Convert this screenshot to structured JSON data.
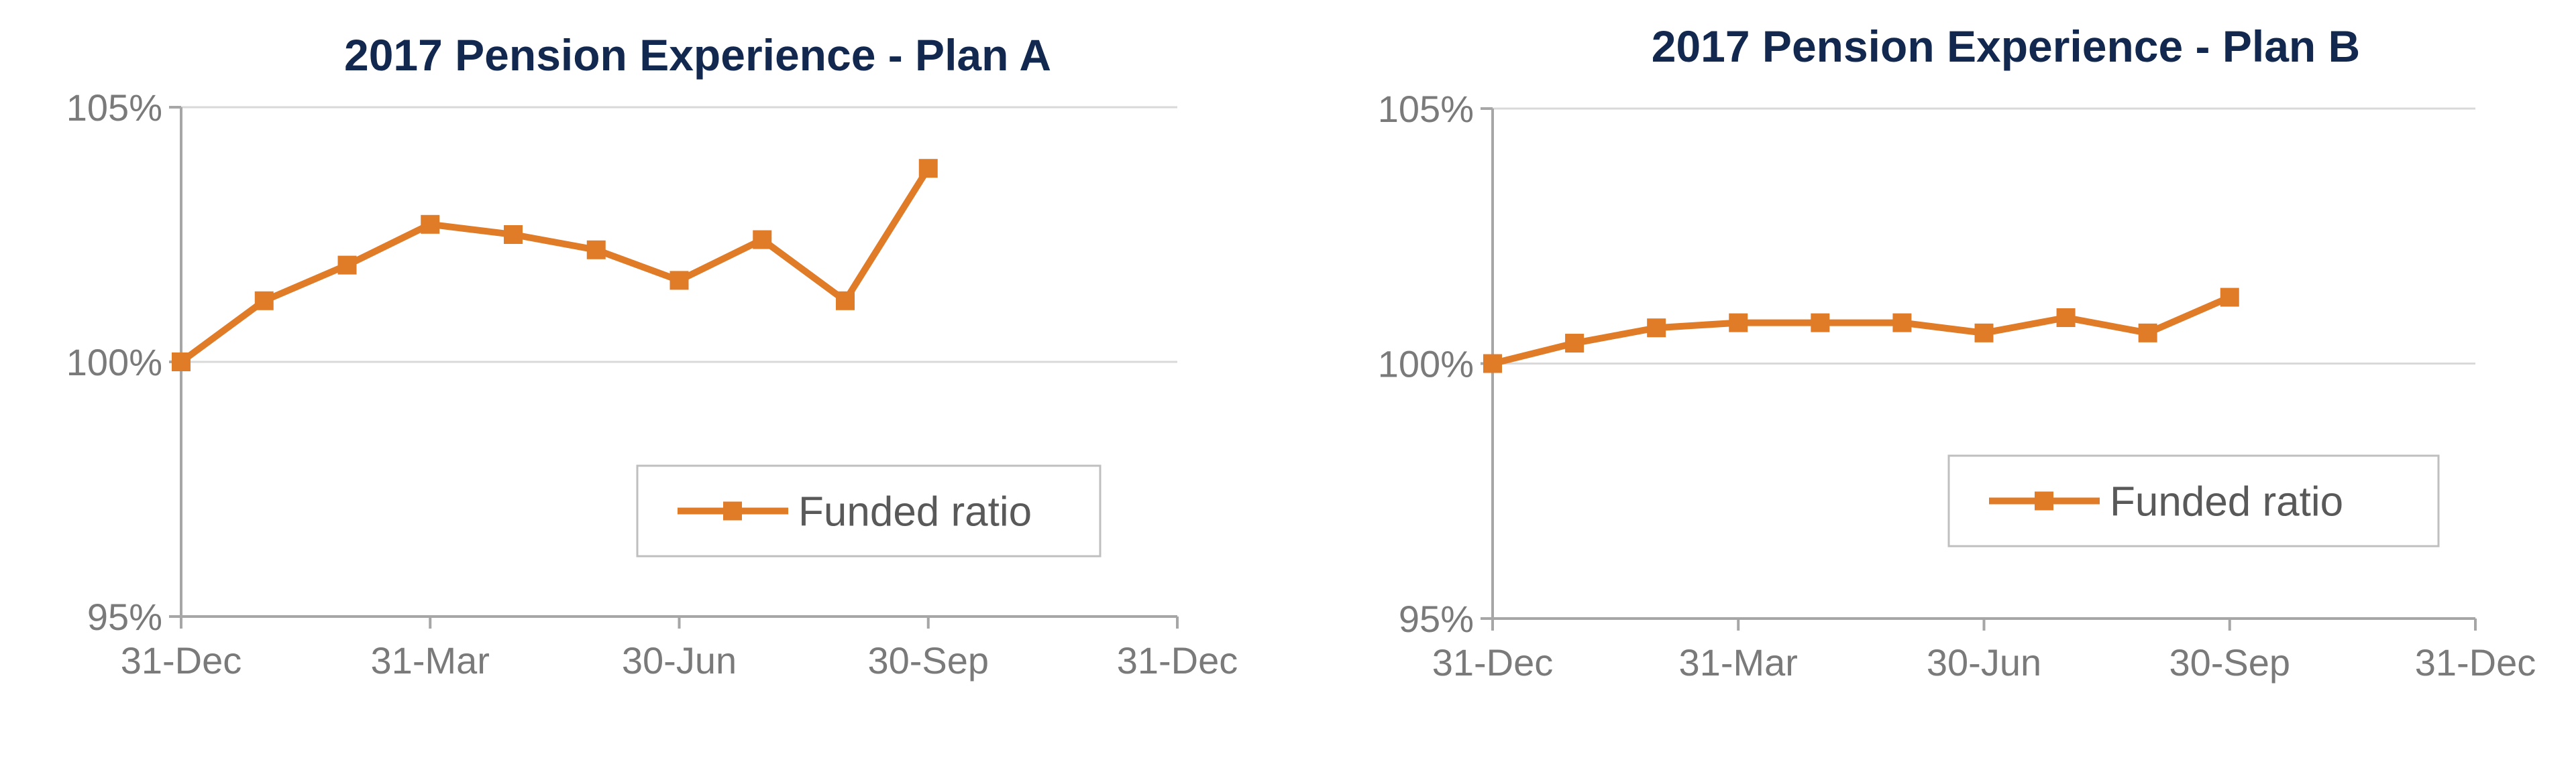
{
  "chart_data": [
    {
      "type": "line",
      "title": "2017 Pension Experience - Plan A",
      "xlabel": "",
      "ylabel": "",
      "x_ticks": [
        "31-Dec",
        "31-Mar",
        "30-Jun",
        "30-Sep",
        "31-Dec"
      ],
      "y_ticks": [
        "105%",
        "100%",
        "95%"
      ],
      "ylim": [
        95,
        105
      ],
      "grid": true,
      "legend": "bottom-right",
      "x": [
        "31-Dec",
        "31-Jan",
        "28-Feb",
        "31-Mar",
        "30-Apr",
        "31-May",
        "30-Jun",
        "31-Jul",
        "31-Aug",
        "30-Sep"
      ],
      "series": [
        {
          "name": "Funded ratio",
          "color": "#e07b28",
          "marker": "square",
          "values": [
            100.0,
            101.2,
            101.9,
            102.7,
            102.5,
            102.2,
            101.6,
            102.4,
            101.2,
            103.8
          ]
        }
      ]
    },
    {
      "type": "line",
      "title": "2017 Pension Experience - Plan B",
      "xlabel": "",
      "ylabel": "",
      "x_ticks": [
        "31-Dec",
        "31-Mar",
        "30-Jun",
        "30-Sep",
        "31-Dec"
      ],
      "y_ticks": [
        "105%",
        "100%",
        "95%"
      ],
      "ylim": [
        95,
        105
      ],
      "grid": true,
      "legend": "bottom-right",
      "x": [
        "31-Dec",
        "31-Jan",
        "28-Feb",
        "31-Mar",
        "30-Apr",
        "31-May",
        "30-Jun",
        "31-Jul",
        "31-Aug",
        "30-Sep"
      ],
      "series": [
        {
          "name": "Funded ratio",
          "color": "#e07b28",
          "marker": "square",
          "values": [
            100.0,
            100.4,
            100.7,
            100.8,
            100.8,
            100.8,
            100.6,
            100.9,
            100.6,
            101.3
          ]
        }
      ]
    }
  ],
  "colors": {
    "title": "#12284f",
    "axis": "#a6a6a6",
    "grid": "#d9d9d9",
    "tick_text": "#7a7a7a",
    "legend_border": "#bfbfbf",
    "legend_text": "#595959"
  }
}
